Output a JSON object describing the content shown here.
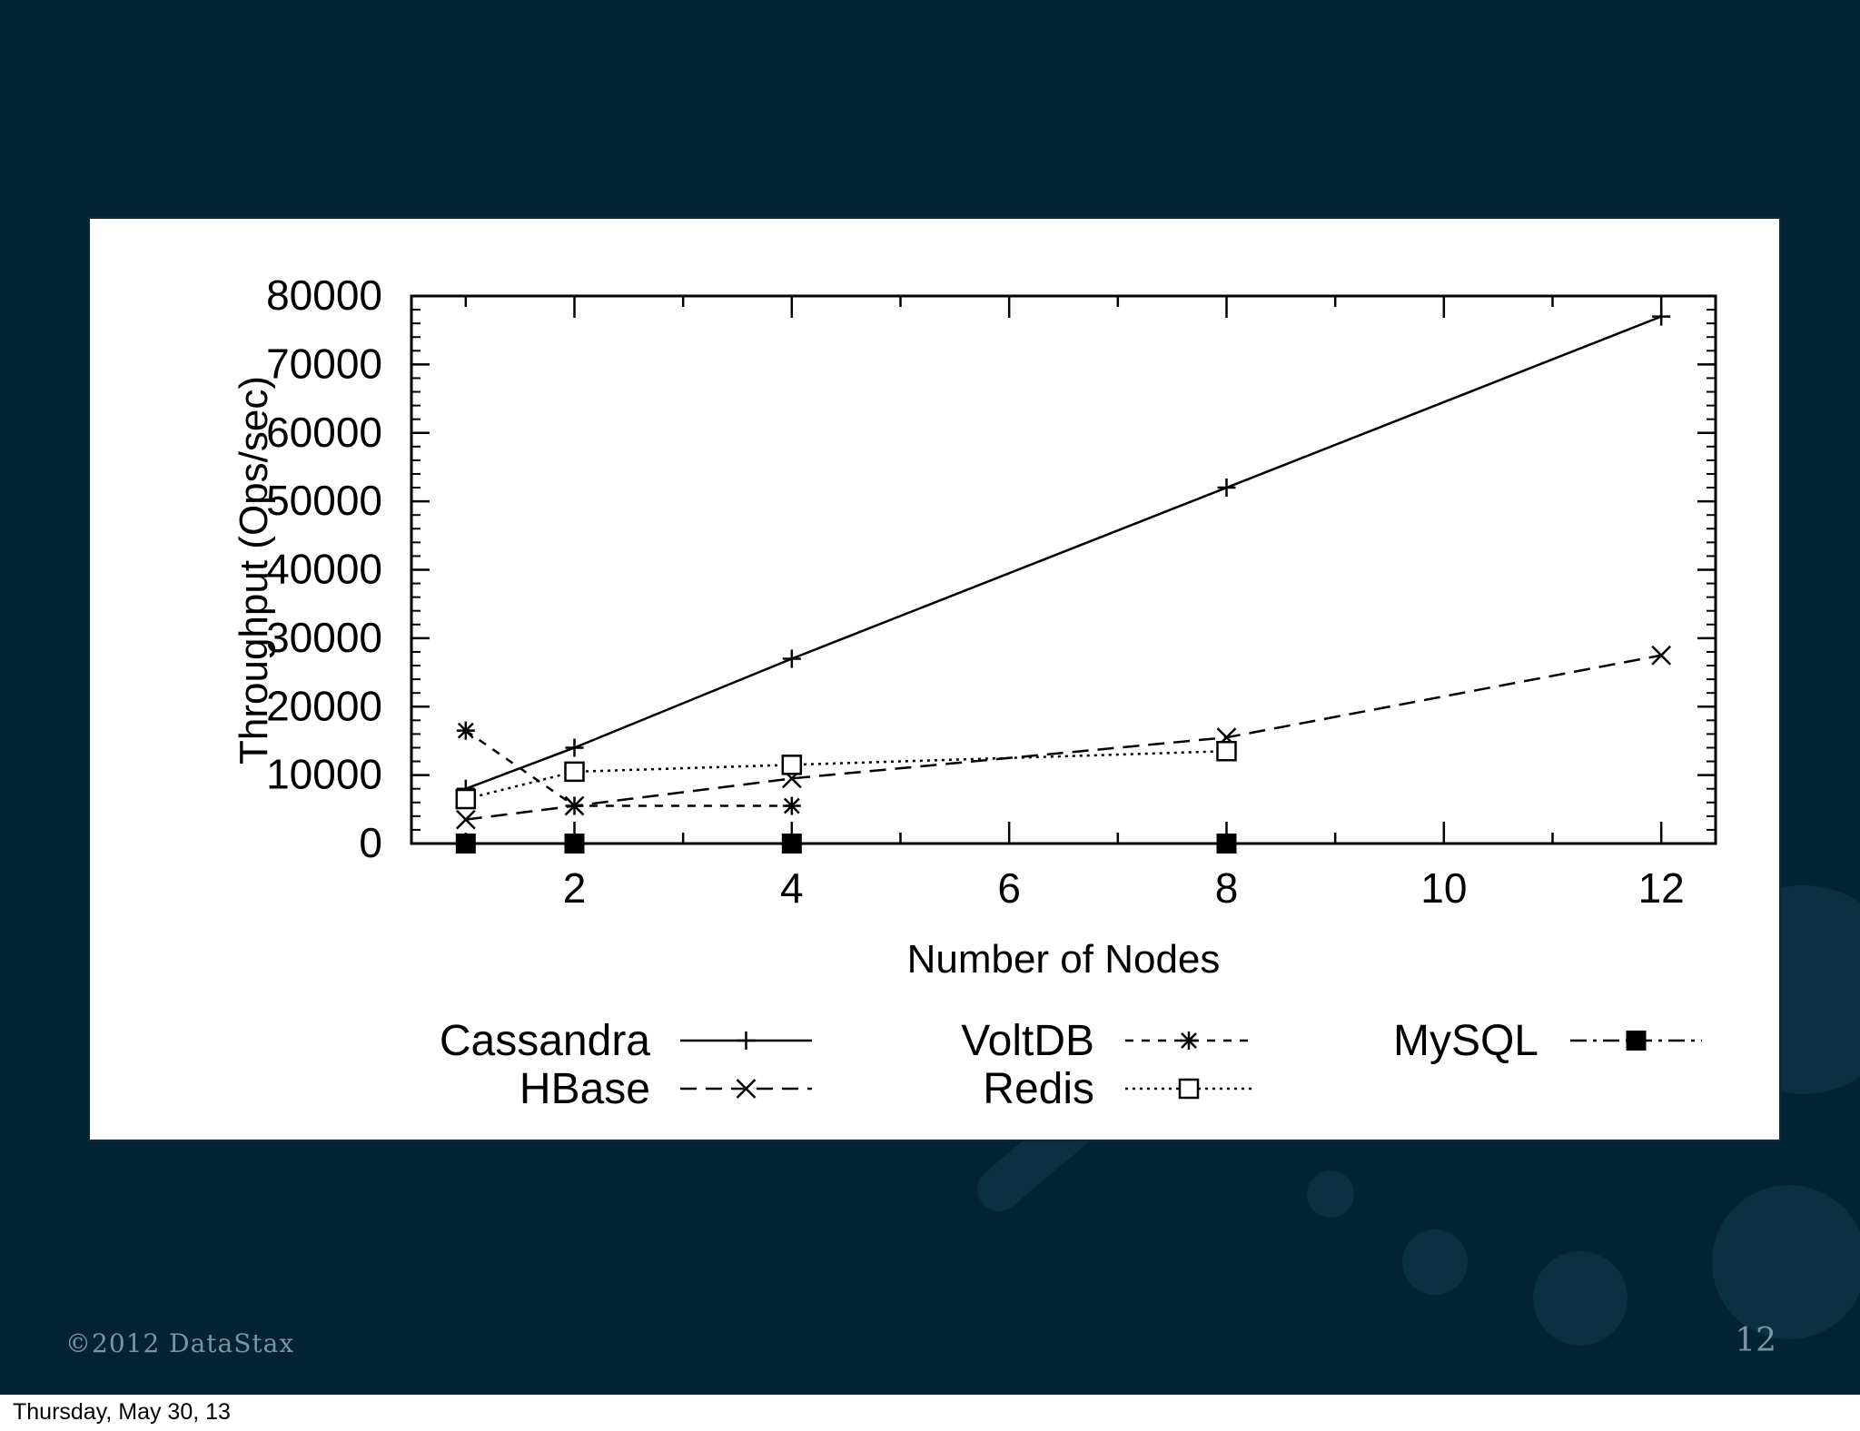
{
  "footer": {
    "copyright": "©2012 DataStax",
    "page_number": "12",
    "date": "Thursday, May 30, 13"
  },
  "colors": {
    "slide_background": "#032233",
    "chart_background": "#ffffff",
    "ink": "#000000",
    "footer_text": "#7d93a1"
  },
  "chart_data": {
    "type": "line",
    "title": "",
    "xlabel": "Number of Nodes",
    "ylabel": "Throughput (Ops/sec)",
    "xlim": [
      0.5,
      12.5
    ],
    "ylim": [
      0,
      80000
    ],
    "x_ticks": [
      2,
      4,
      6,
      8,
      10,
      12
    ],
    "y_ticks": [
      0,
      10000,
      20000,
      30000,
      40000,
      50000,
      60000,
      70000,
      80000
    ],
    "grid": false,
    "legend_position": "bottom",
    "series": [
      {
        "name": "Cassandra",
        "marker": "plus",
        "dash": "solid",
        "x": [
          1,
          2,
          4,
          8,
          12
        ],
        "y": [
          8000,
          14000,
          27000,
          52000,
          77000
        ]
      },
      {
        "name": "HBase",
        "marker": "cross",
        "dash": "dashed",
        "x": [
          1,
          2,
          4,
          8,
          12
        ],
        "y": [
          3500,
          5500,
          9500,
          15500,
          27500
        ]
      },
      {
        "name": "VoltDB",
        "marker": "star",
        "dash": "short-dashed",
        "x": [
          1,
          2,
          4
        ],
        "y": [
          16500,
          5500,
          5500
        ]
      },
      {
        "name": "Redis",
        "marker": "square-open",
        "dash": "dotted",
        "x": [
          1,
          2,
          4,
          8
        ],
        "y": [
          6500,
          10500,
          11500,
          13500
        ]
      },
      {
        "name": "MySQL",
        "marker": "square-filled",
        "dash": "dash-dot",
        "x": [
          1,
          2,
          4,
          8
        ],
        "y": [
          0,
          0,
          0,
          0
        ]
      }
    ]
  }
}
